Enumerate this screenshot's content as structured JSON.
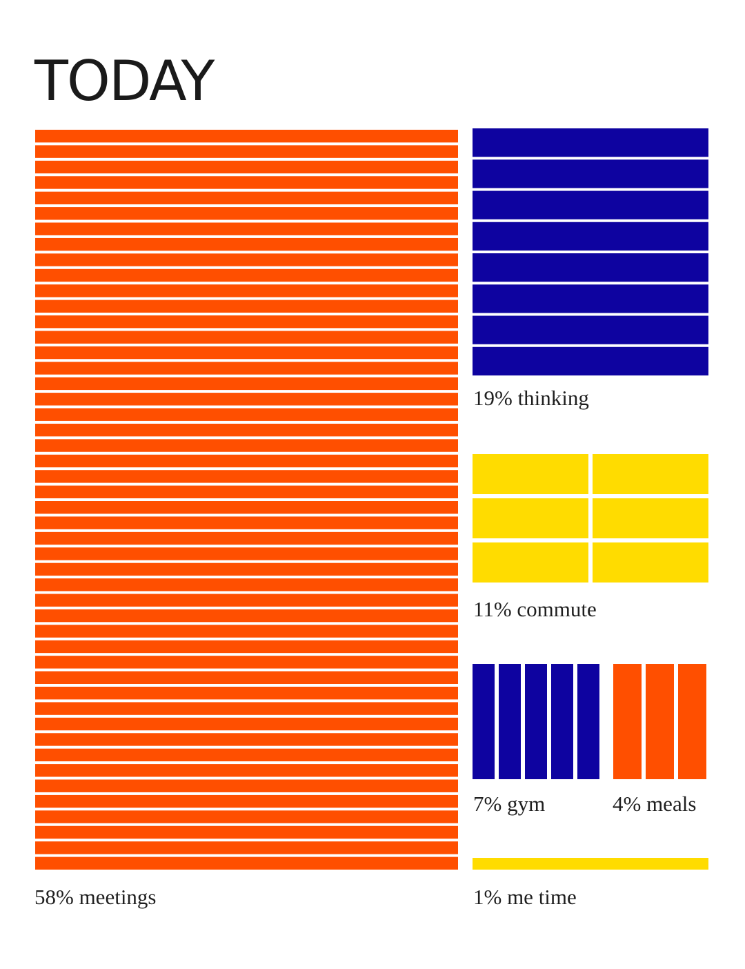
{
  "title": "TODAY",
  "chart_data": {
    "type": "waffle",
    "title": "TODAY",
    "unit": "blocks",
    "colors": {
      "orange": "#ff4f00",
      "navy": "#0e03a0",
      "yellow": "#ffdc00"
    },
    "categories": [
      {
        "name": "meetings",
        "label": "58% meetings",
        "percent": 58,
        "blocks": 48,
        "color": "#ff4f00"
      },
      {
        "name": "thinking",
        "label": "19% thinking",
        "percent": 19,
        "blocks": 8,
        "color": "#0e03a0"
      },
      {
        "name": "commute",
        "label": "11% commute",
        "percent": 11,
        "blocks": 6,
        "color": "#ffdc00"
      },
      {
        "name": "gym",
        "label": "7% gym",
        "percent": 7,
        "blocks": 5,
        "color": "#0e03a0"
      },
      {
        "name": "meals",
        "label": "4% meals",
        "percent": 4,
        "blocks": 3,
        "color": "#ff4f00"
      },
      {
        "name": "me-time",
        "label": "1% me time",
        "percent": 1,
        "blocks": 1,
        "color": "#ffdc00"
      }
    ]
  }
}
